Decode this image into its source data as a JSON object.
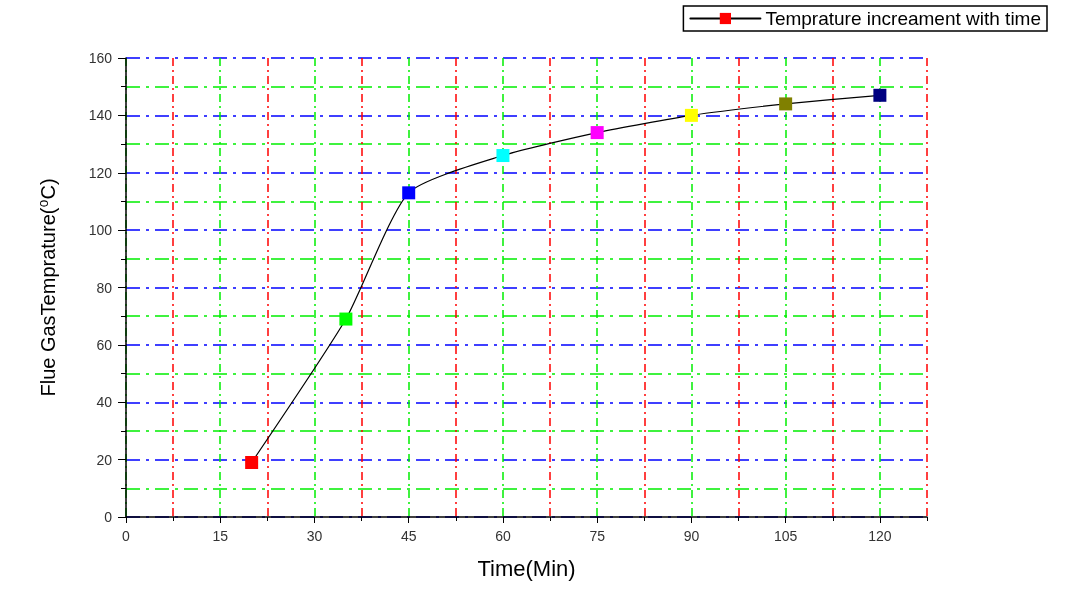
{
  "chart_data": {
    "type": "line",
    "xlabel": "Time(Min)",
    "ylabel": "Flue GasTemprature(⁰C)",
    "x": [
      20,
      35,
      45,
      60,
      75,
      90,
      105,
      120
    ],
    "series": [
      {
        "name": "Temprature increament with time",
        "color": "#000000",
        "colors": [
          "#ff0000",
          "#00ff00",
          "#0000ff",
          "#00ffff",
          "#ff00ff",
          "#ffff00",
          "#808000",
          "#000080"
        ],
        "values": [
          19,
          69,
          113,
          126,
          134,
          140,
          144,
          147
        ]
      }
    ],
    "xlim": [
      0,
      127.5
    ],
    "xticks": [
      0,
      {
        "value": 7.5,
        "label": null
      },
      15,
      {
        "value": 22.5,
        "label": null
      },
      30,
      {
        "value": 37.5,
        "label": null
      },
      45,
      {
        "value": 52.5,
        "label": null
      },
      60,
      {
        "value": 67.5,
        "label": null
      },
      75,
      {
        "value": 82.5,
        "label": null
      },
      90,
      {
        "value": 97.5,
        "label": null
      },
      105,
      {
        "value": 112.5,
        "label": null
      },
      120,
      {
        "value": 127.5,
        "label": null
      }
    ],
    "ylim": [
      0,
      160
    ],
    "yticks": [
      0,
      {
        "value": 10,
        "label": null
      },
      20,
      {
        "value": 30,
        "label": null
      },
      40,
      {
        "value": 50,
        "label": null
      },
      60,
      {
        "value": 70,
        "label": null
      },
      80,
      {
        "value": 90,
        "label": null
      },
      100,
      {
        "value": 110,
        "label": null
      },
      120,
      {
        "value": 130,
        "label": null
      },
      140,
      {
        "value": 150,
        "label": null
      },
      160
    ],
    "grid": true,
    "legend": "top right",
    "marker": "square",
    "line_style": "solid"
  }
}
